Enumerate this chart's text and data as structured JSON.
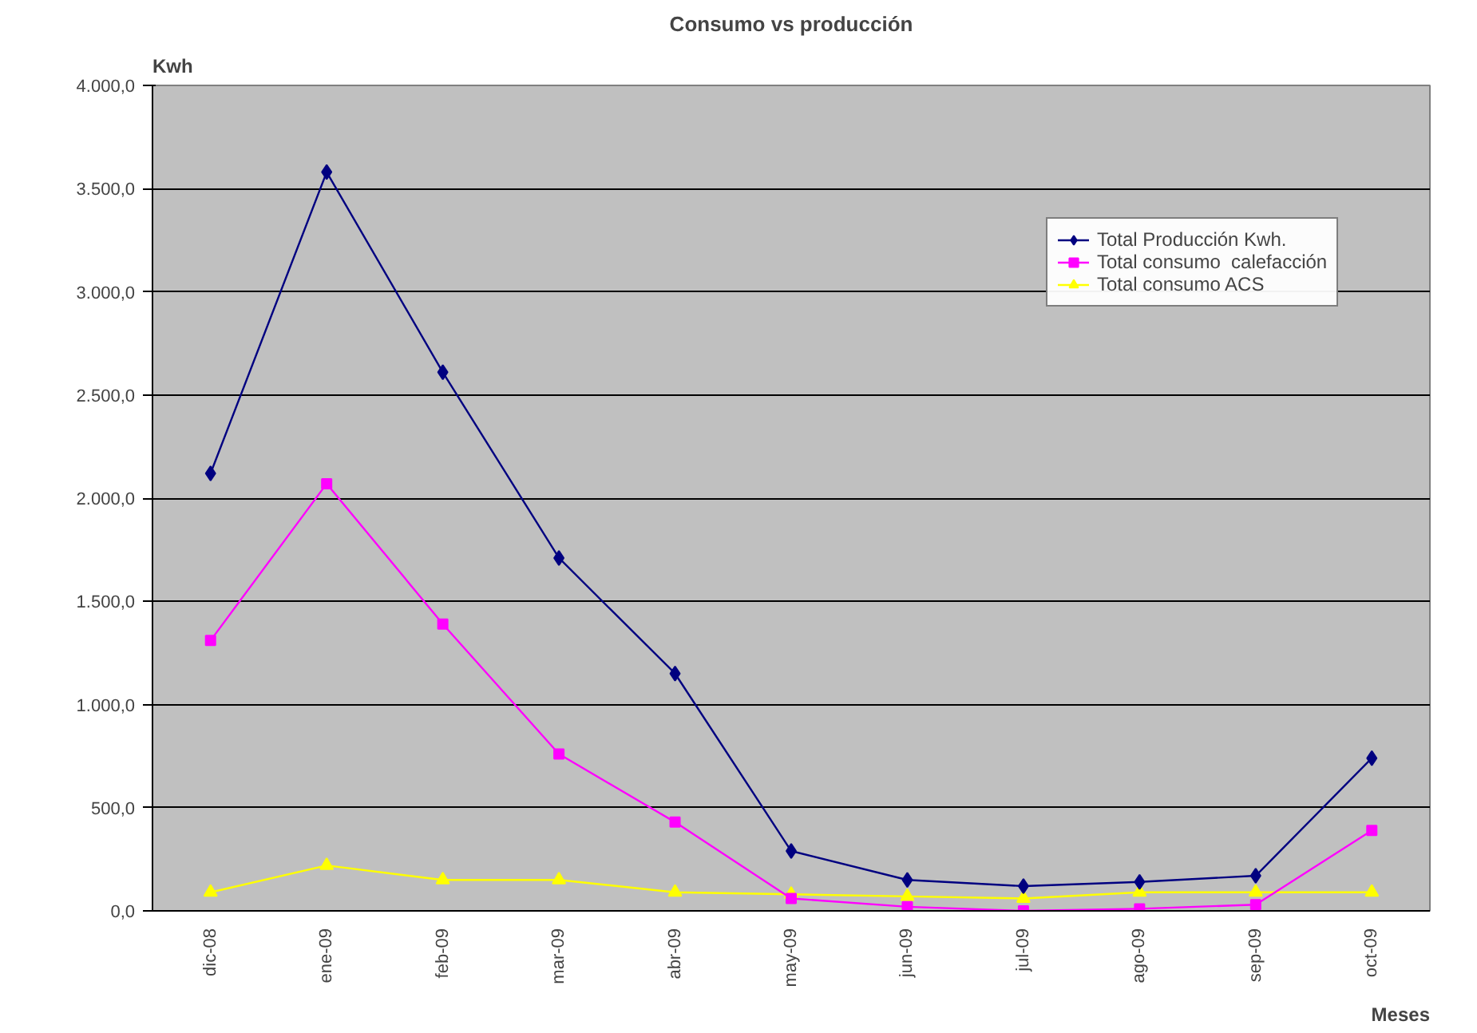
{
  "chart_data": {
    "type": "line",
    "title": "Consumo vs producción",
    "xlabel": "Meses",
    "ylabel": "Kwh",
    "categories": [
      "dic-08",
      "ene-09",
      "feb-09",
      "mar-09",
      "abr-09",
      "may-09",
      "jun-09",
      "jul-09",
      "ago-09",
      "sep-09",
      "oct-09"
    ],
    "series": [
      {
        "name": "Total Producción Kwh.",
        "color": "#000080",
        "marker": "diamond",
        "values": [
          2120,
          3580,
          2610,
          1710,
          1150,
          290,
          150,
          120,
          140,
          170,
          740
        ]
      },
      {
        "name": "Total consumo  calefacción",
        "color": "#ff00ff",
        "marker": "square",
        "values": [
          1310,
          2070,
          1390,
          760,
          430,
          60,
          20,
          0,
          10,
          30,
          390
        ]
      },
      {
        "name": "Total consumo ACS",
        "color": "#ffff00",
        "marker": "triangle",
        "values": [
          90,
          220,
          150,
          150,
          90,
          80,
          70,
          60,
          90,
          90,
          90
        ]
      }
    ],
    "ylim": [
      0,
      4000
    ],
    "yticks": [
      {
        "value": 0,
        "label": "0,0"
      },
      {
        "value": 500,
        "label": "500,0"
      },
      {
        "value": 1000,
        "label": "1.000,0"
      },
      {
        "value": 1500,
        "label": "1.500,0"
      },
      {
        "value": 2000,
        "label": "2.000,0"
      },
      {
        "value": 2500,
        "label": "2.500,0"
      },
      {
        "value": 3000,
        "label": "3.000,0"
      },
      {
        "value": 3500,
        "label": "3.500,0"
      },
      {
        "value": 4000,
        "label": "4.000,0"
      }
    ],
    "grid": "y",
    "legend": "top right",
    "line_style": "solid"
  }
}
